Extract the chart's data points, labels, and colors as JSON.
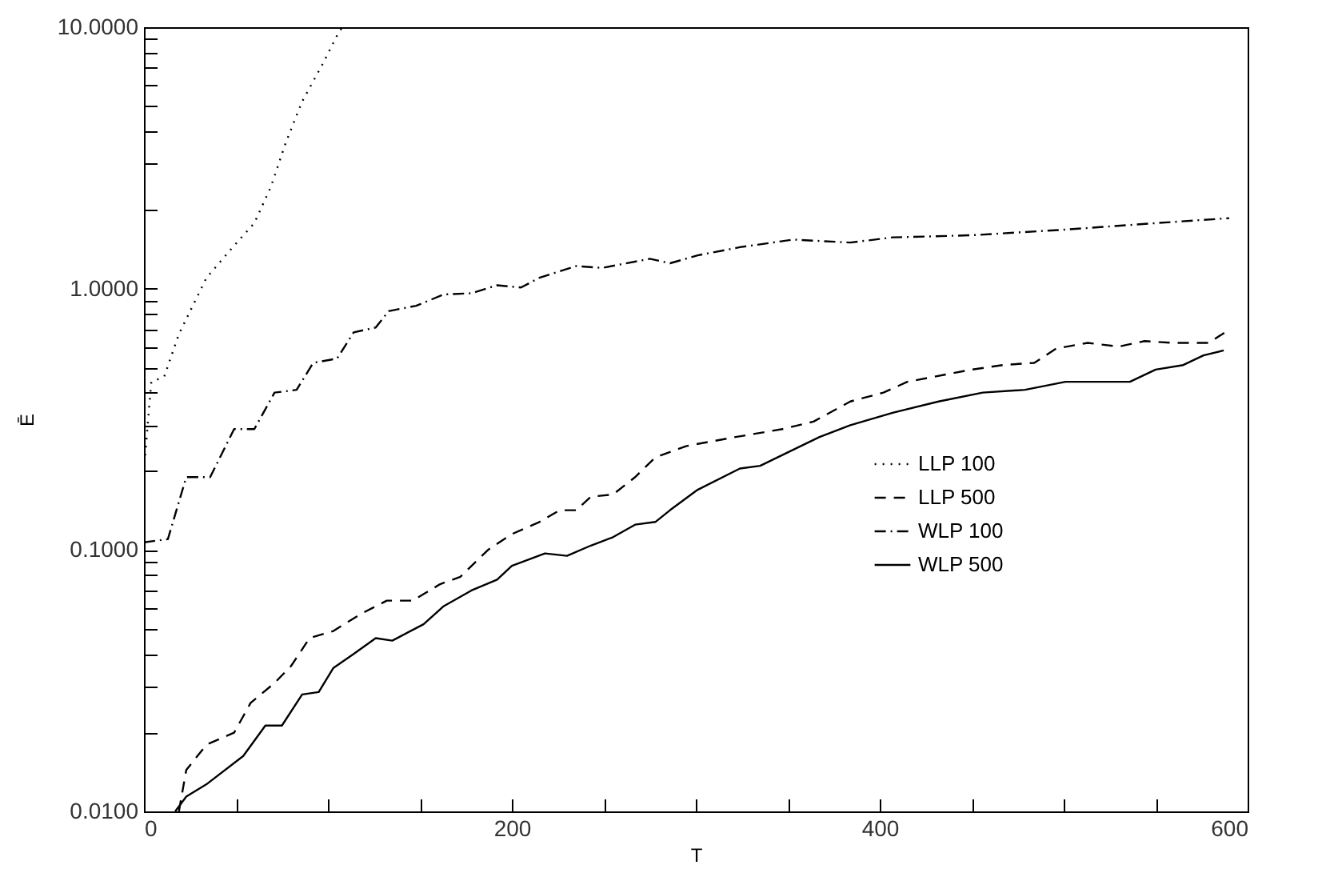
{
  "chart_data": {
    "type": "line",
    "xlabel": "T",
    "ylabel": "Ē",
    "log": "y",
    "grid": false,
    "legend": "bottom right",
    "marker": "none",
    "xlim": [
      0,
      600
    ],
    "xticks": [
      0,
      {
        "value": 50,
        "label": null
      },
      {
        "value": 100,
        "label": null
      },
      {
        "value": 150,
        "label": null
      },
      200,
      {
        "value": 250,
        "label": null
      },
      {
        "value": 300,
        "label": null
      },
      {
        "value": 350,
        "label": null
      },
      400,
      {
        "value": 450,
        "label": null
      },
      {
        "value": 500,
        "label": null
      },
      {
        "value": 550,
        "label": null
      },
      600
    ],
    "ylim": [
      0.01,
      10
    ],
    "yticks": [
      {
        "value": 0.01,
        "label": "0.0100"
      },
      {
        "value": 0.02,
        "label": null
      },
      {
        "value": 0.03,
        "label": null
      },
      {
        "value": 0.04,
        "label": null
      },
      {
        "value": 0.05,
        "label": null
      },
      {
        "value": 0.06,
        "label": null
      },
      {
        "value": 0.07,
        "label": null
      },
      {
        "value": 0.08,
        "label": null
      },
      {
        "value": 0.09,
        "label": null
      },
      {
        "value": 0.1,
        "label": "0.1000"
      },
      {
        "value": 0.2,
        "label": null
      },
      {
        "value": 0.3,
        "label": null
      },
      {
        "value": 0.4,
        "label": null
      },
      {
        "value": 0.5,
        "label": null
      },
      {
        "value": 0.6,
        "label": null
      },
      {
        "value": 0.7,
        "label": null
      },
      {
        "value": 0.8,
        "label": null
      },
      {
        "value": 0.9,
        "label": null
      },
      {
        "value": 1,
        "label": "1.0000"
      },
      {
        "value": 2,
        "label": null
      },
      {
        "value": 3,
        "label": null
      },
      {
        "value": 4,
        "label": null
      },
      {
        "value": 5,
        "label": null
      },
      {
        "value": 6,
        "label": null
      },
      {
        "value": 7,
        "label": null
      },
      {
        "value": 8,
        "label": null
      },
      {
        "value": 9,
        "label": null
      },
      {
        "value": 10,
        "label": "10.0000"
      }
    ],
    "series": [
      {
        "name": "LLP 100",
        "color": "#000000",
        "line_style": "dotted",
        "x": [
          0,
          2,
          4,
          11,
          19,
          34,
          49,
          60,
          69,
          77,
          86,
          97,
          106,
          108
        ],
        "values": [
          0.2,
          0.3,
          0.44,
          0.46,
          0.67,
          1.1,
          1.46,
          1.78,
          2.45,
          3.6,
          5.2,
          7.2,
          9.6,
          10
        ]
      },
      {
        "name": "LLP 500",
        "color": "#000000",
        "line_style": "dashed",
        "x": [
          19,
          23,
          34,
          49,
          58,
          71,
          80,
          90,
          103,
          118,
          132,
          146,
          161,
          172,
          187,
          200,
          215,
          226,
          235,
          243,
          255,
          267,
          278,
          295,
          321,
          347,
          364,
          384,
          402,
          415,
          450,
          467,
          484,
          496,
          513,
          530,
          544,
          559,
          579,
          589
        ],
        "values": [
          0.01,
          0.0144,
          0.018,
          0.02,
          0.026,
          0.031,
          0.036,
          0.046,
          0.049,
          0.057,
          0.064,
          0.064,
          0.074,
          0.079,
          0.1,
          0.115,
          0.128,
          0.142,
          0.142,
          0.16,
          0.163,
          0.19,
          0.226,
          0.25,
          0.27,
          0.29,
          0.31,
          0.37,
          0.4,
          0.44,
          0.49,
          0.51,
          0.52,
          0.59,
          0.62,
          0.6,
          0.63,
          0.62,
          0.62,
          0.69
        ]
      },
      {
        "name": "WLP 100",
        "color": "#000000",
        "line_style": "dashdot",
        "x": [
          0,
          13,
          23,
          36,
          49,
          60,
          71,
          83,
          92,
          105,
          114,
          126,
          133,
          148,
          163,
          178,
          192,
          205,
          215,
          235,
          249,
          275,
          286,
          301,
          324,
          353,
          384,
          407,
          450,
          500,
          550,
          590
        ],
        "values": [
          0.107,
          0.11,
          0.19,
          0.19,
          0.29,
          0.29,
          0.4,
          0.41,
          0.52,
          0.54,
          0.68,
          0.71,
          0.82,
          0.86,
          0.95,
          0.96,
          1.03,
          1.01,
          1.1,
          1.22,
          1.2,
          1.3,
          1.25,
          1.34,
          1.44,
          1.54,
          1.5,
          1.57,
          1.6,
          1.68,
          1.78,
          1.86
        ]
      },
      {
        "name": "WLP 500",
        "color": "#000000",
        "line_style": "solid",
        "x": [
          17,
          23,
          34,
          54,
          66,
          75,
          86,
          95,
          103,
          114,
          126,
          135,
          152,
          163,
          178,
          192,
          200,
          218,
          230,
          243,
          255,
          267,
          278,
          286,
          301,
          324,
          335,
          352,
          367,
          384,
          407,
          432,
          456,
          479,
          501,
          536,
          550,
          565,
          576,
          587
        ],
        "values": [
          0.01,
          0.0114,
          0.0127,
          0.0163,
          0.0213,
          0.0213,
          0.028,
          0.0286,
          0.0354,
          0.04,
          0.046,
          0.045,
          0.052,
          0.061,
          0.07,
          0.077,
          0.087,
          0.097,
          0.095,
          0.104,
          0.112,
          0.125,
          0.128,
          0.142,
          0.17,
          0.205,
          0.21,
          0.24,
          0.27,
          0.3,
          0.335,
          0.37,
          0.4,
          0.41,
          0.44,
          0.44,
          0.49,
          0.51,
          0.555,
          0.58
        ]
      }
    ]
  }
}
